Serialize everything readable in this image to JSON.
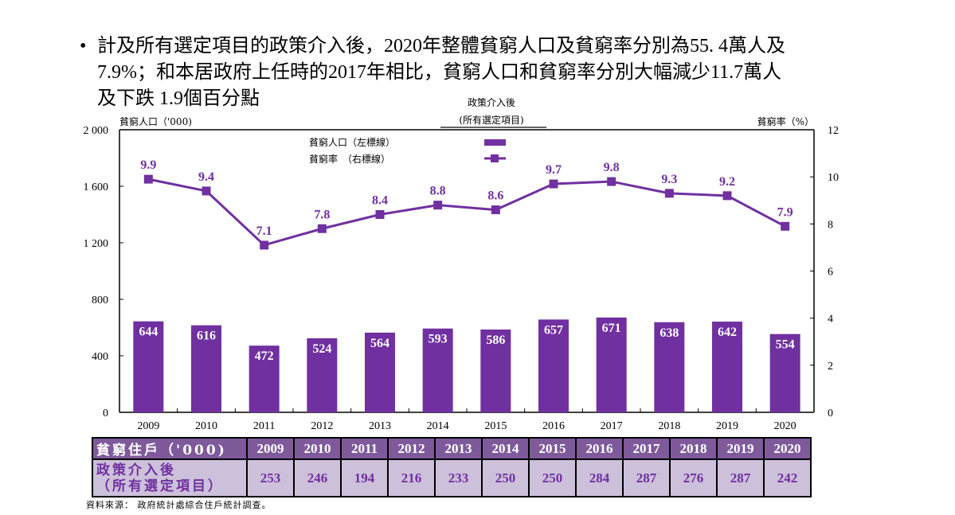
{
  "headline": {
    "bullet": "•",
    "lines": [
      "計及所有選定項目的政策介入後，2020年整體貧窮人口及貧窮率分別為55. 4萬人及",
      "7.9%；和本居政府上任時的2017年相比，貧窮人口和貧窮率分別大幅減少11.7萬人",
      "及下跌 1.9個百分點"
    ]
  },
  "chart_data": {
    "type": "bar",
    "title": "政策介入後",
    "subtitle": "(所有選定項目)",
    "categories": [
      "2009",
      "2010",
      "2011",
      "2012",
      "2013",
      "2014",
      "2015",
      "2016",
      "2017",
      "2018",
      "2019",
      "2020"
    ],
    "series": [
      {
        "name": "貧窮人口（左標線）",
        "type": "bar",
        "axis": "left",
        "color": "#7030a0",
        "values": [
          644,
          616,
          472,
          524,
          564,
          593,
          586,
          657,
          671,
          638,
          642,
          554
        ]
      },
      {
        "name": "貧窮率　（右標線）",
        "type": "line",
        "axis": "right",
        "color": "#7030a0",
        "marker": "square",
        "values": [
          9.9,
          9.4,
          7.1,
          7.8,
          8.4,
          8.8,
          8.6,
          9.7,
          9.8,
          9.3,
          9.2,
          7.9
        ]
      }
    ],
    "ylabel": "貧窮人口（'000)",
    "y2label": "貧窮率（%）",
    "ylim": [
      0,
      2000
    ],
    "y2lim": [
      0,
      12
    ],
    "yticks": [
      0,
      400,
      800,
      1200,
      1600,
      2000
    ],
    "ytick_labels": [
      "0",
      "400",
      "800",
      "1 200",
      "1 600",
      "2 000"
    ],
    "y2ticks": [
      0,
      2,
      4,
      6,
      8,
      10,
      12
    ],
    "y2tick_labels": [
      "0",
      "2",
      "4",
      "6",
      "8",
      "10",
      "12"
    ],
    "grid": false,
    "legend_position": "top-center"
  },
  "table": {
    "header_label": "貧窮住戶（'000)",
    "row_label_line1": "政策介入後",
    "row_label_line2": "（所有選定項目）",
    "years": [
      "2009",
      "2010",
      "2011",
      "2012",
      "2013",
      "2014",
      "2015",
      "2016",
      "2017",
      "2018",
      "2019",
      "2020"
    ],
    "values": [
      "253",
      "246",
      "194",
      "216",
      "233",
      "250",
      "250",
      "284",
      "287",
      "276",
      "287",
      "242"
    ]
  },
  "source": "資料來源：  政府統計處綜合住戶統計調查。"
}
